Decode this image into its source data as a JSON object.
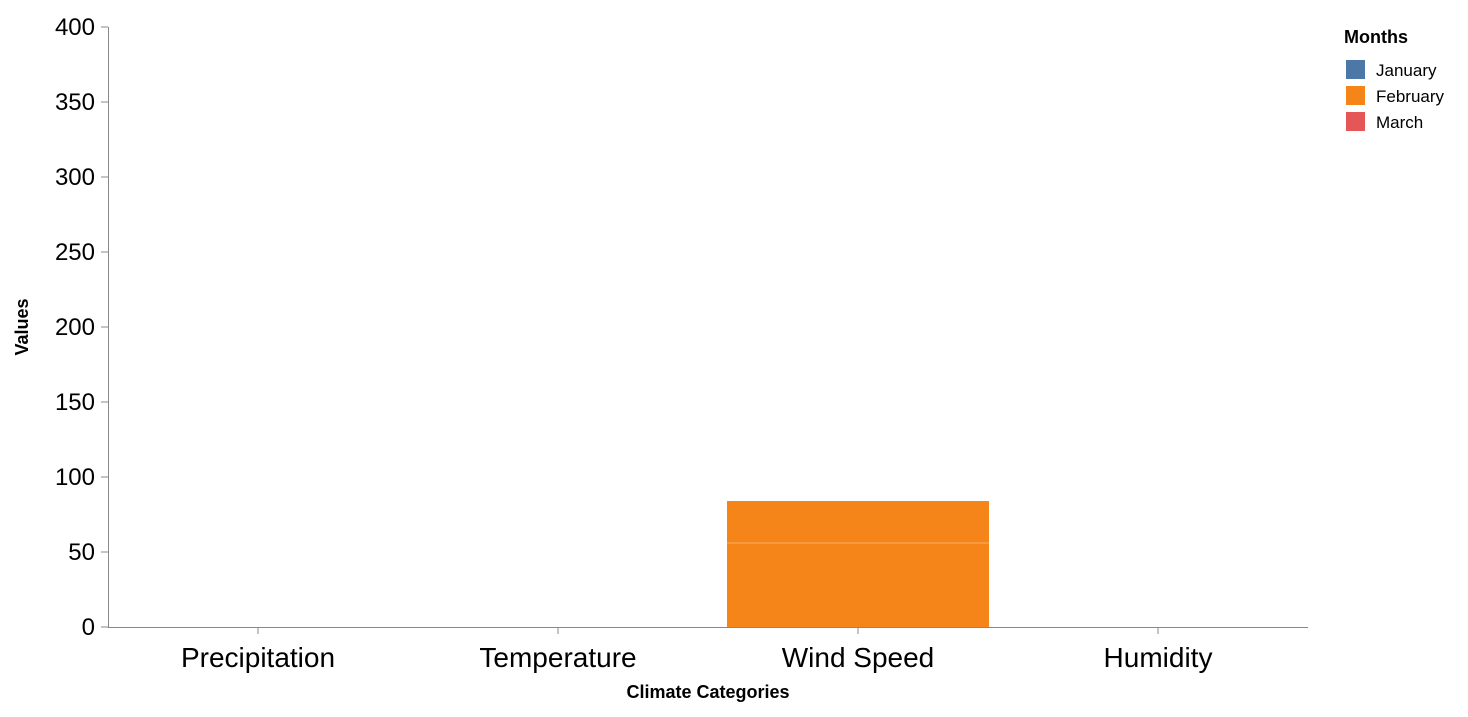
{
  "chart_data": {
    "type": "bar",
    "stacked": true,
    "categories": [
      "Precipitation",
      "Temperature",
      "Wind Speed",
      "Humidity"
    ],
    "series": [
      {
        "name": "January",
        "color": "#4c78a8",
        "values": [
          0,
          0,
          0,
          0
        ]
      },
      {
        "name": "February",
        "color": "#f58518",
        "values": [
          0,
          0,
          56,
          0
        ]
      },
      {
        "name": "March",
        "color": "#e45756",
        "values": [
          0,
          0,
          0,
          0
        ]
      }
    ],
    "extra_segments": [
      {
        "category": "Wind Speed",
        "series": "February",
        "base": 56,
        "value": 28
      }
    ],
    "xlabel": "Climate Categories",
    "ylabel": "Values",
    "ylim": [
      0,
      400
    ],
    "yticks": [
      0,
      50,
      100,
      150,
      200,
      250,
      300,
      350,
      400
    ],
    "grid": false,
    "legend": {
      "title": "Months",
      "position": "top-right"
    }
  }
}
